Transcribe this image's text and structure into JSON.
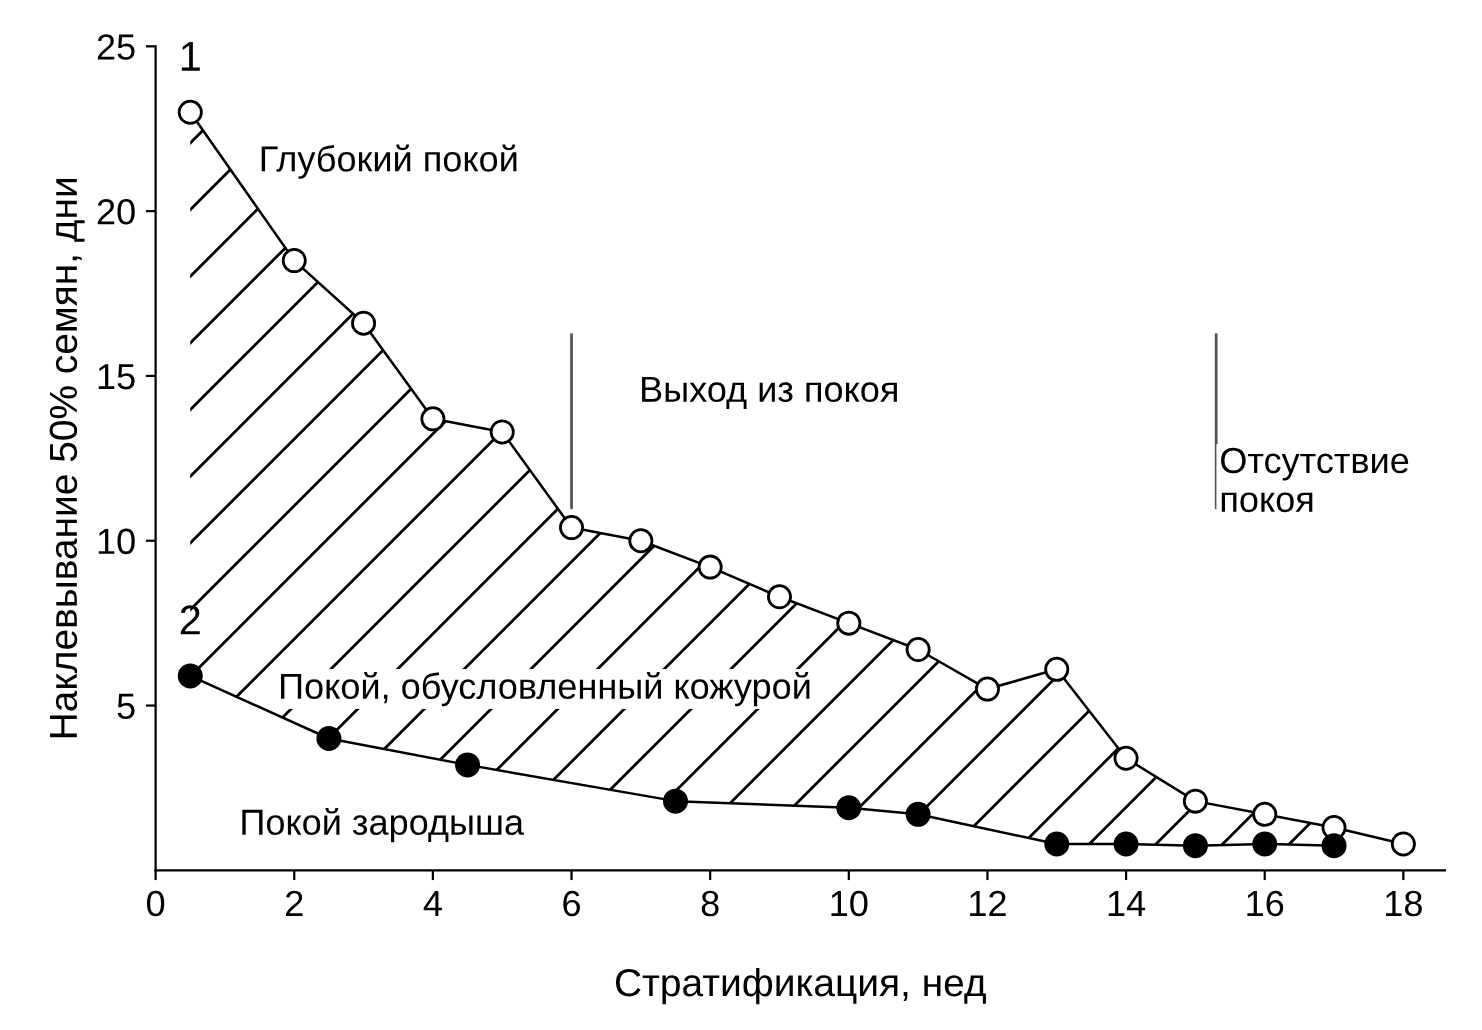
{
  "chart_data": {
    "type": "line",
    "xlabel": "Стратификация, нед",
    "ylabel": "Наклевывание 50% семян, дни",
    "xlim": [
      0,
      18.6
    ],
    "ylim": [
      0,
      25
    ],
    "xticks": [
      0,
      2,
      4,
      6,
      8,
      10,
      12,
      14,
      16,
      18
    ],
    "yticks": [
      5,
      10,
      15,
      20,
      25
    ],
    "grid": false,
    "line_style": "solid",
    "marker": "circle",
    "series": [
      {
        "name": "1",
        "color": "#ffffff",
        "x": [
          0.5,
          2,
          3,
          4,
          5,
          6,
          7,
          8,
          9,
          10,
          11,
          12,
          13,
          14,
          15,
          16,
          17,
          18
        ],
        "values": [
          23,
          18.5,
          16.6,
          13.7,
          13.3,
          10.4,
          10.0,
          9.2,
          8.3,
          7.5,
          6.7,
          5.5,
          6.1,
          3.4,
          2.1,
          1.7,
          1.3,
          0.8
        ]
      },
      {
        "name": "2",
        "color": "#000000",
        "x": [
          0.5,
          2.5,
          4.5,
          7.5,
          10,
          11,
          13,
          14,
          15,
          16,
          17
        ],
        "values": [
          5.9,
          4.0,
          3.2,
          2.1,
          1.9,
          1.7,
          0.8,
          0.8,
          0.75,
          0.8,
          0.75
        ]
      }
    ],
    "ref_lines": [
      {
        "axis": "x",
        "value": 6
      },
      {
        "axis": "x",
        "value": 15.3
      }
    ],
    "annotations": [
      "Глубокий покой",
      "Выход из покоя",
      "Отсутствие\nпокоя",
      "Покой, обусловленный кожурой",
      "Покой зародыша"
    ]
  }
}
